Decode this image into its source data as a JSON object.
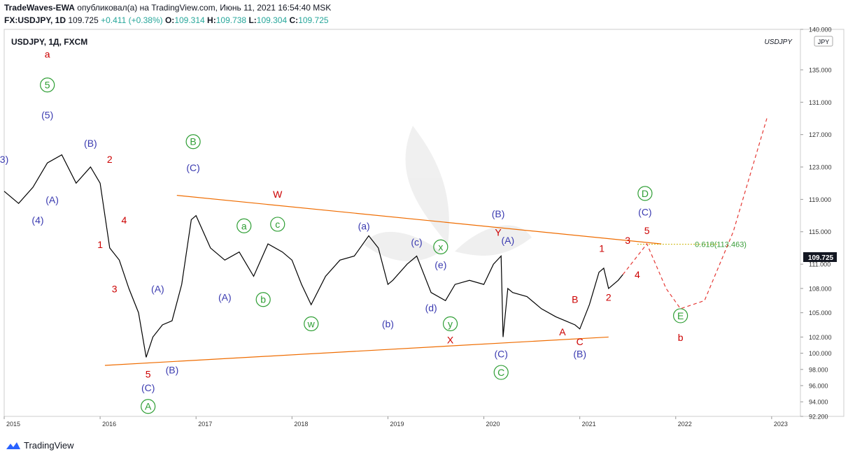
{
  "header": {
    "author": "TradeWaves-EWA",
    "published_text": "опубликовал(а) на TradingView.com, Июнь 11, 2021 16:54:40 MSK",
    "symbol": "FX:USDJPY, 1D",
    "last": "109.725",
    "change": "+0.411 (+0.38%)",
    "o_label": "O:",
    "o_value": "109.314",
    "h_label": "H:",
    "h_value": "109.738",
    "l_label": "L:",
    "l_value": "109.304",
    "c_label": "C:",
    "c_value": "109.725"
  },
  "chart_title": "USDJPY, 1Д, FXCM",
  "watermark_symbol": "USDJPY",
  "currency_badge": "JPY",
  "footer_brand": "TradingView",
  "last_price_label": "109.725",
  "fib_label": "0.618(113.463)",
  "chart_data": {
    "type": "line",
    "title": "USDJPY, 1Д, FXCM",
    "ylabel": "JPY",
    "ylim": [
      92.2,
      140.0
    ],
    "xlim": [
      2015.0,
      2023.3
    ],
    "y_ticks": [
      "140.000",
      "135.000",
      "131.000",
      "127.000",
      "123.000",
      "119.000",
      "115.000",
      "111.000",
      "108.000",
      "105.000",
      "102.000",
      "100.000",
      "98.000",
      "96.000",
      "94.000",
      "92.200"
    ],
    "x_ticks": [
      "2015",
      "2016",
      "2017",
      "2018",
      "2019",
      "2020",
      "2021",
      "2022",
      "2023"
    ],
    "series": [
      {
        "name": "USDJPY daily close (approx.)",
        "x": [
          2015.0,
          2015.15,
          2015.3,
          2015.45,
          2015.6,
          2015.75,
          2015.9,
          2016.0,
          2016.1,
          2016.2,
          2016.3,
          2016.4,
          2016.48,
          2016.55,
          2016.65,
          2016.75,
          2016.85,
          2016.95,
          2017.0,
          2017.15,
          2017.3,
          2017.45,
          2017.6,
          2017.75,
          2017.9,
          2018.0,
          2018.1,
          2018.2,
          2018.35,
          2018.5,
          2018.65,
          2018.8,
          2018.9,
          2019.0,
          2019.05,
          2019.2,
          2019.3,
          2019.45,
          2019.6,
          2019.7,
          2019.85,
          2020.0,
          2020.1,
          2020.18,
          2020.2,
          2020.25,
          2020.3,
          2020.45,
          2020.6,
          2020.75,
          2020.85,
          2020.95,
          2021.0,
          2021.1,
          2021.2,
          2021.25,
          2021.3,
          2021.4,
          2021.45
        ],
        "values": [
          120.0,
          118.5,
          120.5,
          123.5,
          124.5,
          121.0,
          123.0,
          121.0,
          113.0,
          111.5,
          108.0,
          105.0,
          99.5,
          102.0,
          103.5,
          104.0,
          108.5,
          116.5,
          117.0,
          113.0,
          111.5,
          112.5,
          109.5,
          113.5,
          112.5,
          111.5,
          108.5,
          106.0,
          109.5,
          111.5,
          112.0,
          114.5,
          113.0,
          108.5,
          109.0,
          111.0,
          112.0,
          107.5,
          106.5,
          108.5,
          109.0,
          108.5,
          111.0,
          112.0,
          102.0,
          108.0,
          107.5,
          107.0,
          105.5,
          104.5,
          104.0,
          103.5,
          103.0,
          106.0,
          110.0,
          110.5,
          108.0,
          109.0,
          109.725
        ]
      }
    ],
    "forecast": {
      "name": "projection",
      "x": [
        2021.45,
        2021.7,
        2021.9,
        2022.05,
        2022.3,
        2022.6,
        2022.95
      ],
      "values": [
        109.725,
        113.5,
        108.0,
        105.5,
        106.5,
        115.0,
        129.0
      ]
    },
    "fibonacci": {
      "label": "0.618(113.463)",
      "level": 113.463
    },
    "trendlines": [
      {
        "name": "upper-channel",
        "x": [
          2016.8,
          2021.85
        ],
        "values": [
          119.5,
          113.5
        ]
      },
      {
        "name": "lower-channel",
        "x": [
          2016.05,
          2021.3
        ],
        "values": [
          98.5,
          102.0
        ]
      }
    ],
    "annotations": [
      {
        "text": "a",
        "color": "#cc0000",
        "circled": false,
        "x": 2015.45,
        "y": 136.5
      },
      {
        "text": "5",
        "color": "#2e9e34",
        "circled": true,
        "x": 2015.45,
        "y": 132.7
      },
      {
        "text": "(5)",
        "color": "#3a3ab0",
        "circled": false,
        "x": 2015.45,
        "y": 129.0
      },
      {
        "text": "3)",
        "color": "#3a3ab0",
        "circled": false,
        "x": 2015.0,
        "y": 123.5
      },
      {
        "text": "(B)",
        "color": "#3a3ab0",
        "circled": false,
        "x": 2015.9,
        "y": 125.5
      },
      {
        "text": "2",
        "color": "#cc0000",
        "circled": false,
        "x": 2016.1,
        "y": 123.5
      },
      {
        "text": "(A)",
        "color": "#3a3ab0",
        "circled": false,
        "x": 2015.5,
        "y": 118.5
      },
      {
        "text": "(4)",
        "color": "#3a3ab0",
        "circled": false,
        "x": 2015.35,
        "y": 116.0
      },
      {
        "text": "4",
        "color": "#cc0000",
        "circled": false,
        "x": 2016.25,
        "y": 116.0
      },
      {
        "text": "1",
        "color": "#cc0000",
        "circled": false,
        "x": 2016.0,
        "y": 113.0
      },
      {
        "text": "3",
        "color": "#cc0000",
        "circled": false,
        "x": 2016.15,
        "y": 107.5
      },
      {
        "text": "(A)",
        "color": "#3a3ab0",
        "circled": false,
        "x": 2016.6,
        "y": 107.5
      },
      {
        "text": "5",
        "color": "#cc0000",
        "circled": false,
        "x": 2016.5,
        "y": 97.0
      },
      {
        "text": "(C)",
        "color": "#3a3ab0",
        "circled": false,
        "x": 2016.5,
        "y": 95.3
      },
      {
        "text": "A",
        "color": "#2e9e34",
        "circled": true,
        "x": 2016.5,
        "y": 93.0
      },
      {
        "text": "(B)",
        "color": "#3a3ab0",
        "circled": false,
        "x": 2016.75,
        "y": 97.5
      },
      {
        "text": "B",
        "color": "#2e9e34",
        "circled": true,
        "x": 2016.97,
        "y": 125.7
      },
      {
        "text": "(C)",
        "color": "#3a3ab0",
        "circled": false,
        "x": 2016.97,
        "y": 122.5
      },
      {
        "text": "a",
        "color": "#2e9e34",
        "circled": true,
        "x": 2017.5,
        "y": 115.3
      },
      {
        "text": "c",
        "color": "#2e9e34",
        "circled": true,
        "x": 2017.85,
        "y": 115.5
      },
      {
        "text": "W",
        "color": "#cc0000",
        "circled": false,
        "x": 2017.85,
        "y": 119.2
      },
      {
        "text": "(A)",
        "color": "#3a3ab0",
        "circled": false,
        "x": 2017.3,
        "y": 106.5
      },
      {
        "text": "b",
        "color": "#2e9e34",
        "circled": true,
        "x": 2017.7,
        "y": 106.2
      },
      {
        "text": "w",
        "color": "#2e9e34",
        "circled": true,
        "x": 2018.2,
        "y": 103.2
      },
      {
        "text": "(a)",
        "color": "#3a3ab0",
        "circled": false,
        "x": 2018.75,
        "y": 115.3
      },
      {
        "text": "(b)",
        "color": "#3a3ab0",
        "circled": false,
        "x": 2019.0,
        "y": 103.2
      },
      {
        "text": "(c)",
        "color": "#3a3ab0",
        "circled": false,
        "x": 2019.3,
        "y": 113.3
      },
      {
        "text": "x",
        "color": "#2e9e34",
        "circled": true,
        "x": 2019.55,
        "y": 112.7
      },
      {
        "text": "(e)",
        "color": "#3a3ab0",
        "circled": false,
        "x": 2019.55,
        "y": 110.5
      },
      {
        "text": "(d)",
        "color": "#3a3ab0",
        "circled": false,
        "x": 2019.45,
        "y": 105.2
      },
      {
        "text": "y",
        "color": "#2e9e34",
        "circled": true,
        "x": 2019.65,
        "y": 103.2
      },
      {
        "text": "X",
        "color": "#cc0000",
        "circled": false,
        "x": 2019.65,
        "y": 101.2
      },
      {
        "text": "(B)",
        "color": "#3a3ab0",
        "circled": false,
        "x": 2020.15,
        "y": 116.8
      },
      {
        "text": "Y",
        "color": "#cc0000",
        "circled": false,
        "x": 2020.15,
        "y": 114.5
      },
      {
        "text": "(A)",
        "color": "#3a3ab0",
        "circled": false,
        "x": 2020.25,
        "y": 113.5
      },
      {
        "text": "(C)",
        "color": "#3a3ab0",
        "circled": false,
        "x": 2020.18,
        "y": 99.5
      },
      {
        "text": "C",
        "color": "#2e9e34",
        "circled": true,
        "x": 2020.18,
        "y": 97.2
      },
      {
        "text": "A",
        "color": "#cc0000",
        "circled": false,
        "x": 2020.82,
        "y": 102.2
      },
      {
        "text": "B",
        "color": "#cc0000",
        "circled": false,
        "x": 2020.95,
        "y": 106.2
      },
      {
        "text": "C",
        "color": "#cc0000",
        "circled": false,
        "x": 2021.0,
        "y": 101.0
      },
      {
        "text": "(B)",
        "color": "#3a3ab0",
        "circled": false,
        "x": 2021.0,
        "y": 99.5
      },
      {
        "text": "1",
        "color": "#cc0000",
        "circled": false,
        "x": 2021.23,
        "y": 112.5
      },
      {
        "text": "2",
        "color": "#cc0000",
        "circled": false,
        "x": 2021.3,
        "y": 106.5
      },
      {
        "text": "3",
        "color": "#cc0000",
        "circled": false,
        "x": 2021.5,
        "y": 113.5
      },
      {
        "text": "4",
        "color": "#cc0000",
        "circled": false,
        "x": 2021.6,
        "y": 109.3
      },
      {
        "text": "5",
        "color": "#cc0000",
        "circled": false,
        "x": 2021.7,
        "y": 114.7
      },
      {
        "text": "(C)",
        "color": "#3a3ab0",
        "circled": false,
        "x": 2021.68,
        "y": 117.0
      },
      {
        "text": "D",
        "color": "#2e9e34",
        "circled": true,
        "x": 2021.68,
        "y": 119.3
      },
      {
        "text": "E",
        "color": "#2e9e34",
        "circled": true,
        "x": 2022.05,
        "y": 104.2
      },
      {
        "text": "b",
        "color": "#cc0000",
        "circled": false,
        "x": 2022.05,
        "y": 101.5
      }
    ]
  }
}
